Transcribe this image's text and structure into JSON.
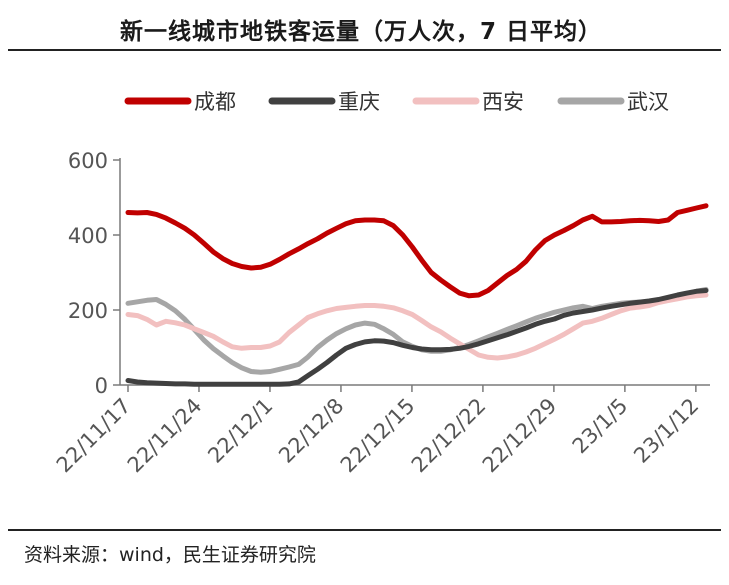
{
  "header": {
    "title": "新一线城市地铁客运量（万人次，7 日平均）"
  },
  "footer": {
    "source": "资料来源：wind，民生证券研究院"
  },
  "colors": {
    "成都": "#c00000",
    "重庆": "#404040",
    "西安": "#f2c0c0",
    "武汉": "#a6a6a6"
  },
  "chart_data": {
    "type": "line",
    "title": "新一线城市地铁客运量（万人次，7 日平均）",
    "ylim": [
      0,
      600
    ],
    "yticks": [
      0,
      200,
      400,
      600
    ],
    "x_start": "2022-11-17",
    "x_end": "2023-01-13",
    "xticks": [
      "22/11/17",
      "22/11/24",
      "22/12/1",
      "22/12/8",
      "22/12/15",
      "22/12/22",
      "22/12/29",
      "23/1/5",
      "23/1/12"
    ],
    "legend_position": "top",
    "grid": false,
    "series": [
      {
        "name": "成都",
        "values": [
          460,
          459,
          460,
          455,
          445,
          432,
          418,
          400,
          378,
          355,
          337,
          324,
          316,
          312,
          314,
          322,
          335,
          350,
          363,
          377,
          390,
          405,
          418,
          430,
          438,
          440,
          440,
          438,
          425,
          400,
          368,
          333,
          300,
          280,
          262,
          245,
          238,
          240,
          252,
          272,
          292,
          308,
          330,
          360,
          385,
          400,
          412,
          425,
          440,
          450,
          435,
          435,
          436,
          438,
          439,
          438,
          436,
          440,
          460,
          466,
          472,
          478
        ]
      },
      {
        "name": "重庆",
        "values": [
          12,
          8,
          6,
          5,
          4,
          3,
          3,
          2,
          2,
          2,
          2,
          2,
          2,
          2,
          2,
          2,
          2,
          3,
          8,
          25,
          42,
          60,
          80,
          98,
          108,
          115,
          118,
          117,
          113,
          106,
          100,
          96,
          94,
          94,
          95,
          98,
          103,
          110,
          118,
          126,
          134,
          143,
          152,
          162,
          170,
          176,
          186,
          192,
          196,
          200,
          205,
          210,
          214,
          218,
          221,
          224,
          228,
          234,
          240,
          245,
          250,
          252
        ]
      },
      {
        "name": "西安",
        "values": [
          188,
          185,
          175,
          160,
          170,
          166,
          160,
          150,
          140,
          130,
          115,
          102,
          98,
          100,
          100,
          104,
          115,
          140,
          160,
          180,
          190,
          198,
          204,
          207,
          210,
          212,
          212,
          210,
          206,
          198,
          188,
          172,
          155,
          142,
          125,
          110,
          95,
          80,
          74,
          72,
          75,
          80,
          88,
          98,
          110,
          122,
          135,
          150,
          165,
          170,
          178,
          188,
          198,
          205,
          208,
          212,
          220,
          225,
          230,
          235,
          238,
          240
        ]
      },
      {
        "name": "武汉",
        "values": [
          218,
          222,
          226,
          228,
          215,
          198,
          175,
          148,
          120,
          97,
          78,
          60,
          46,
          36,
          34,
          36,
          42,
          48,
          55,
          75,
          100,
          120,
          137,
          150,
          160,
          165,
          162,
          150,
          135,
          115,
          103,
          94,
          90,
          90,
          94,
          100,
          108,
          118,
          128,
          138,
          148,
          158,
          168,
          178,
          186,
          194,
          200,
          206,
          210,
          204,
          210,
          214,
          218,
          220,
          221,
          222,
          226,
          232,
          238,
          244,
          250,
          255
        ]
      }
    ]
  }
}
